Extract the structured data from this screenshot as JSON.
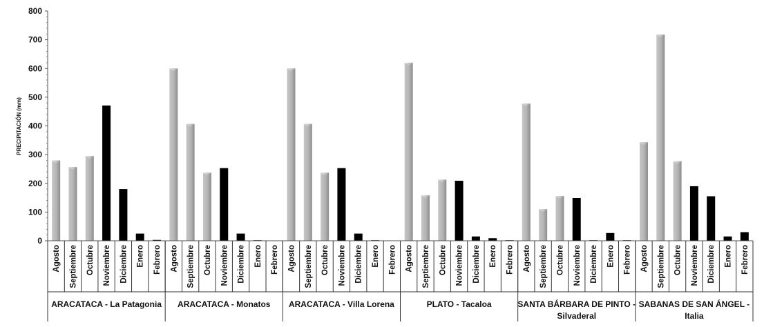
{
  "chart_data": {
    "type": "bar",
    "ylabel": "PRECIPITACIÓN (mm)",
    "xlabel": "",
    "ylim": [
      0,
      800
    ],
    "yticks": [
      0,
      100,
      200,
      300,
      400,
      500,
      600,
      700,
      800
    ],
    "grid": false,
    "legend": "none",
    "colors": {
      "light": "#b8b8b8",
      "mid": "#9a9a9a",
      "dark": "#000000"
    },
    "groups": [
      {
        "label": "ARACATACA - La Patagonia",
        "categories": [
          "Agosto",
          "Septiembre",
          "Octubre",
          "Noviembre",
          "Diciembre",
          "Enero",
          "Febrero"
        ],
        "values": [
          280,
          257,
          295,
          471,
          180,
          25,
          3
        ],
        "styles": [
          "light",
          "light",
          "light",
          "dark",
          "dark",
          "dark",
          "dark"
        ]
      },
      {
        "label": "ARACATACA - Monatos",
        "categories": [
          "Agosto",
          "Septiembre",
          "Octubre",
          "Noviembre",
          "Diciembre",
          "Enero",
          "Febrero"
        ],
        "values": [
          600,
          407,
          237,
          253,
          25,
          2,
          0
        ],
        "styles": [
          "light",
          "light",
          "light",
          "dark",
          "dark",
          "dark",
          "dark"
        ]
      },
      {
        "label": "ARACATACA - Villa Lorena",
        "categories": [
          "Agosto",
          "Septiembre",
          "Octubre",
          "Noviembre",
          "Diciembre",
          "Enero",
          "Febrero"
        ],
        "values": [
          600,
          407,
          237,
          253,
          25,
          2,
          0
        ],
        "styles": [
          "light",
          "light",
          "light",
          "dark",
          "dark",
          "dark",
          "dark"
        ]
      },
      {
        "label": "PLATO - Tacaloa",
        "categories": [
          "Agosto",
          "Septiembre",
          "Octubre",
          "Noviembre",
          "Diciembre",
          "Enero",
          "Febrero"
        ],
        "values": [
          620,
          158,
          213,
          209,
          15,
          9,
          2
        ],
        "styles": [
          "light",
          "light",
          "light",
          "dark",
          "dark",
          "dark",
          "dark"
        ]
      },
      {
        "label": "SANTA BÁRBARA DE PINTO - Silvaderal",
        "label_lines": [
          "SANTA BÁRBARA DE PINTO -",
          "Silvaderal"
        ],
        "categories": [
          "Agosto",
          "Septiembre",
          "Octubre",
          "Noviembre",
          "Diciembre",
          "Enero",
          "Febrero"
        ],
        "values": [
          478,
          110,
          156,
          149,
          2,
          27,
          2
        ],
        "styles": [
          "light",
          "light",
          "light",
          "dark",
          "dark",
          "dark",
          "dark"
        ]
      },
      {
        "label": "SABANAS DE SAN ÁNGEL - Italia",
        "label_lines": [
          "SABANAS DE SAN ÁNGEL -",
          "Italia"
        ],
        "categories": [
          "Agosto",
          "Septiembre",
          "Octubre",
          "Noviembre",
          "Diciembre",
          "Enero",
          "Febrero"
        ],
        "values": [
          343,
          718,
          277,
          190,
          155,
          15,
          30
        ],
        "styles": [
          "light",
          "light",
          "light",
          "dark",
          "dark",
          "dark",
          "dark"
        ]
      }
    ]
  }
}
